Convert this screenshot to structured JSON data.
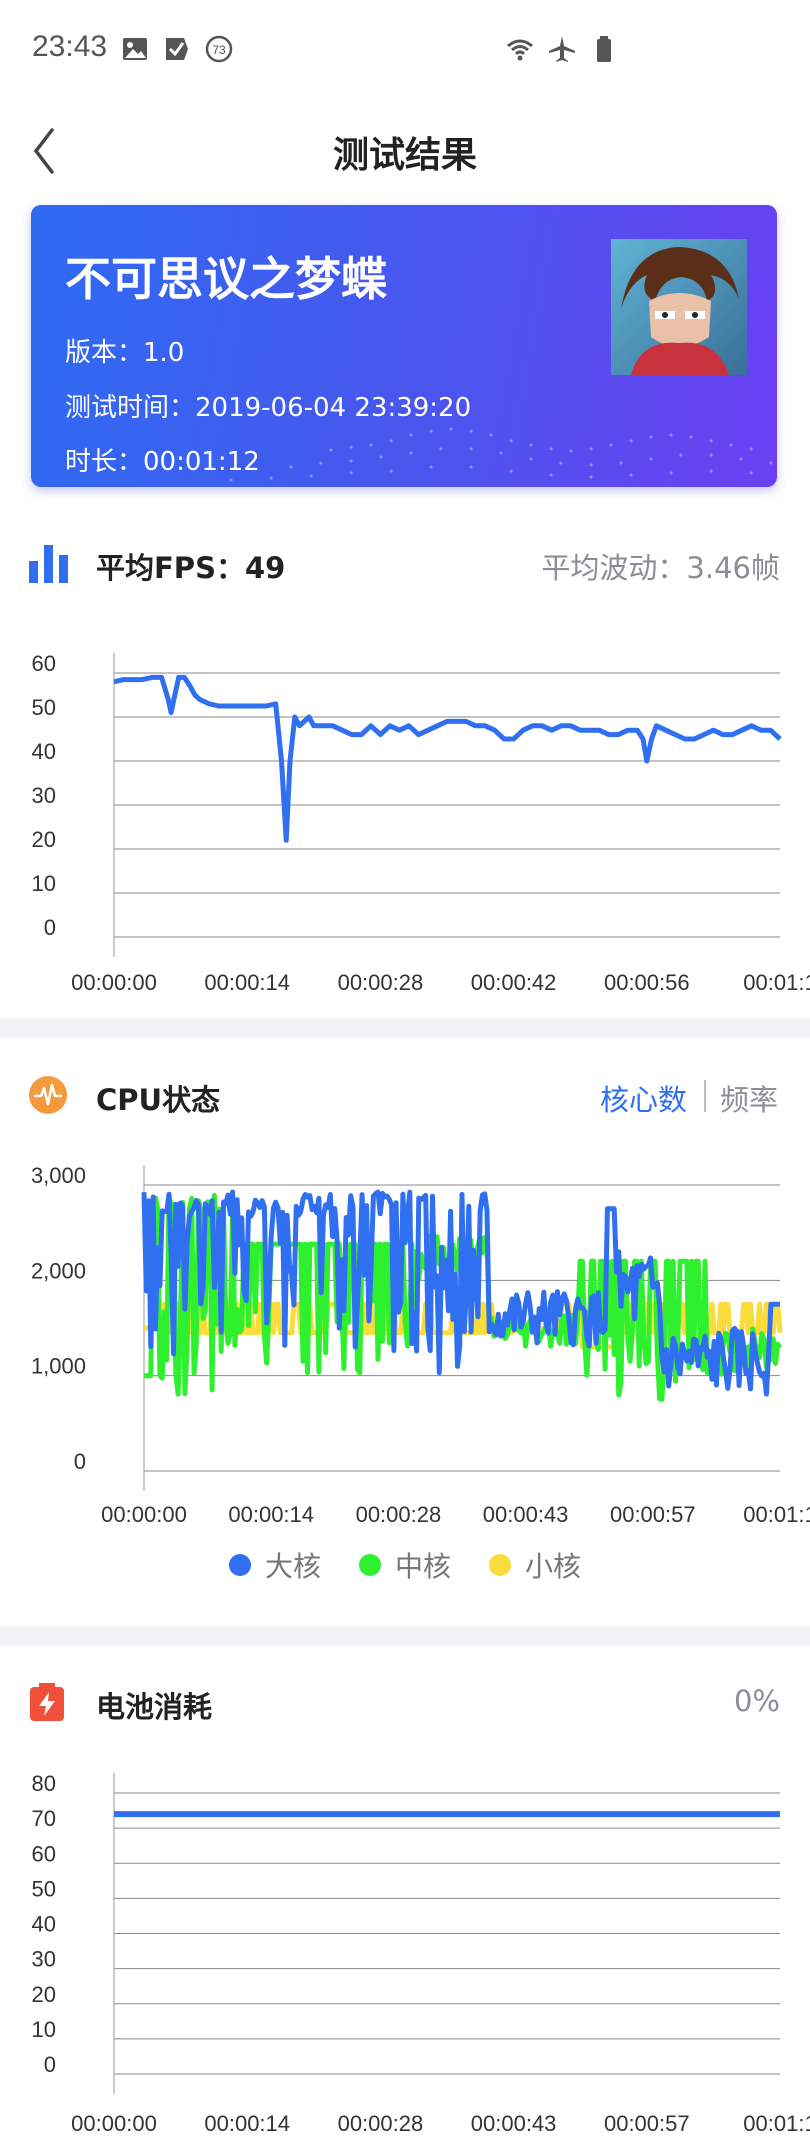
{
  "status_bar": {
    "time": "23:43",
    "notif_badge": "73",
    "icons_left": [
      "image-icon",
      "check-flag-icon",
      "badge-73-icon"
    ],
    "icons_right": [
      "wifi-icon",
      "airplane-icon",
      "battery-icon"
    ]
  },
  "header": {
    "title": "测试结果",
    "back_icon": "chevron-left-icon"
  },
  "game": {
    "name": "不可思议之梦蝶",
    "version": "版本：1.0",
    "test_time": "测试时间：2019-06-04 23:39:20",
    "duration": "时长：00:01:12"
  },
  "fps_section": {
    "title": "平均FPS：49",
    "fluctuation": "平均波动：3.46帧",
    "icon": "bar-chart-icon"
  },
  "cpu_section": {
    "title": "CPU状态",
    "icon": "pulse-icon",
    "tab_active": "核心数",
    "tab_inactive": "频率",
    "legend": [
      "大核",
      "中核",
      "小核"
    ]
  },
  "battery_section": {
    "title": "电池消耗",
    "icon": "battery-flash-icon",
    "value": "0%"
  },
  "colors": {
    "accent": "#2f6ff0",
    "big": "#2f6ff0",
    "mid": "#2ef02e",
    "small": "#f9dc3a",
    "grid": "#888888"
  },
  "chart_data": [
    {
      "type": "line",
      "id": "fps",
      "ylim": [
        0,
        60
      ],
      "yticks": [
        "0",
        "10",
        "20",
        "30",
        "40",
        "50",
        "60"
      ],
      "xticks": [
        "00:00:00",
        "00:00:14",
        "00:00:28",
        "00:00:42",
        "00:00:56",
        "00:01:1"
      ],
      "xlim": [
        0,
        70
      ],
      "series": [
        {
          "color": "#2f6ff0",
          "x": [
            0,
            1,
            2,
            3,
            4,
            5,
            5.7,
            6,
            6.3,
            6.8,
            7.4,
            8,
            8.5,
            9,
            9.5,
            10,
            11,
            12,
            13,
            14,
            15,
            16,
            17,
            17.6,
            18.1,
            18.5,
            19,
            19.5,
            20,
            20.5,
            21,
            22,
            23,
            24,
            25,
            26,
            27,
            28,
            29,
            30,
            31,
            32,
            33,
            34,
            35,
            36,
            37,
            38,
            39,
            40,
            41,
            42,
            43,
            44,
            45,
            46,
            47,
            48,
            49,
            50,
            51,
            52,
            53,
            54,
            55,
            55.6,
            56,
            56.5,
            57,
            58,
            59,
            60,
            61,
            62,
            63,
            64,
            65,
            66,
            67,
            68,
            69,
            70
          ],
          "y": [
            58,
            58.5,
            58.5,
            58.5,
            59,
            59,
            54,
            51,
            54,
            59,
            59,
            57,
            55,
            54,
            53.5,
            53,
            52.5,
            52.5,
            52.5,
            52.5,
            52.5,
            52.5,
            53,
            40,
            22,
            40,
            50,
            48,
            49,
            50,
            48,
            48,
            48,
            47,
            46,
            46,
            48,
            46,
            48,
            47,
            48,
            46,
            47,
            48,
            49,
            49,
            49,
            48,
            48,
            47,
            45,
            45,
            47,
            48,
            48,
            47,
            48,
            48,
            47,
            47,
            47,
            46,
            46,
            47,
            47,
            45,
            40,
            45,
            48,
            47,
            46,
            45,
            45,
            46,
            47,
            46,
            46,
            47,
            48,
            47,
            47,
            45
          ]
        }
      ]
    },
    {
      "type": "line",
      "id": "cpu",
      "ylim": [
        0,
        3000
      ],
      "yticks": [
        "0",
        "1,000",
        "2,000",
        "3,000"
      ],
      "xticks": [
        "00:00:00",
        "00:00:14",
        "00:00:28",
        "00:00:43",
        "00:00:57",
        "00:01:1"
      ],
      "xlim": [
        0,
        70
      ],
      "series": [
        {
          "name": "小核",
          "color": "#f9dc3a",
          "x": [],
          "y": []
        },
        {
          "name": "中核",
          "color": "#2ef02e",
          "x": [],
          "y": []
        },
        {
          "name": "大核",
          "color": "#2f6ff0",
          "x": [],
          "y": []
        }
      ]
    },
    {
      "type": "line",
      "id": "battery",
      "ylim": [
        0,
        80
      ],
      "yticks": [
        "0",
        "10",
        "20",
        "30",
        "40",
        "50",
        "60",
        "70",
        "80"
      ],
      "xticks": [
        "00:00:00",
        "00:00:14",
        "00:00:28",
        "00:00:43",
        "00:00:57",
        "00:01:1"
      ],
      "xlim": [
        0,
        70
      ],
      "series": [
        {
          "color": "#2f6ff0",
          "x": [
            0,
            70
          ],
          "y": [
            74,
            74
          ]
        }
      ]
    }
  ]
}
